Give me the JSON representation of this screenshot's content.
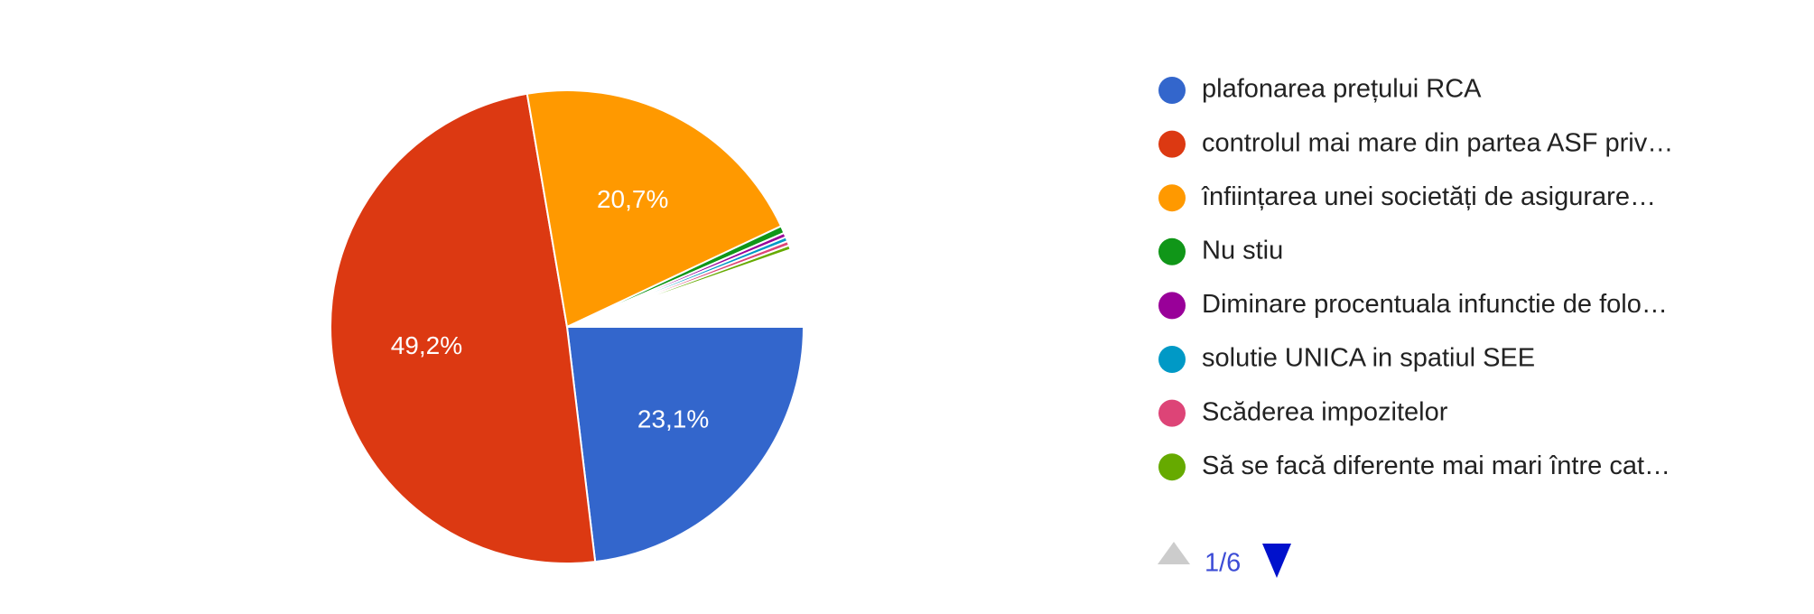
{
  "chart_data": {
    "type": "pie",
    "categories": [
      "plafonarea prețului RCA",
      "controlul mai mare din partea ASF priv…",
      "înființarea unei societăți de asigurare…",
      "Nu stiu",
      "Diminare procentuala infunctie de folo…",
      "solutie UNICA in spatiul SEE",
      "Scăderea impozitelor",
      "Să se facă diferente mai mari între cat…"
    ],
    "values": [
      23.1,
      49.2,
      20.7,
      0.5,
      0.3,
      0.3,
      0.3,
      0.3
    ],
    "value_labels": [
      "23,1%",
      "49,2%",
      "20,7%",
      null,
      null,
      null,
      null,
      null
    ],
    "colors": [
      "#3366cc",
      "#dc3912",
      "#ff9900",
      "#109618",
      "#990099",
      "#0099c6",
      "#dd4477",
      "#66aa00"
    ],
    "legend": "right",
    "pagination": "1/6"
  }
}
